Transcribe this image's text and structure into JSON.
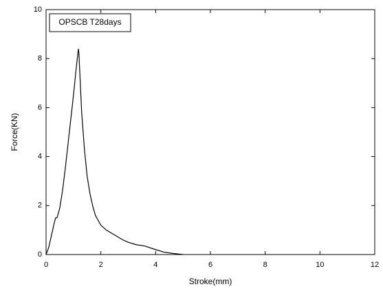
{
  "chart_data": {
    "type": "line",
    "x_label": "Stroke(mm)",
    "y_label": "Force(KN)",
    "xlim": [
      0,
      12
    ],
    "xticks": [
      0,
      2,
      4,
      6,
      8,
      10,
      12
    ],
    "ylim": [
      0,
      10
    ],
    "yticks": [
      0,
      2,
      4,
      6,
      8,
      10
    ],
    "x": [
      0,
      0.1,
      0.2,
      0.3,
      0.35,
      0.4,
      0.5,
      0.6,
      0.7,
      0.8,
      0.9,
      1.0,
      1.1,
      1.18,
      1.2,
      1.25,
      1.3,
      1.4,
      1.5,
      1.6,
      1.7,
      1.8,
      2.0,
      2.2,
      2.5,
      2.8,
      3.0,
      3.3,
      3.6,
      4.0,
      4.3,
      4.6,
      5.0
    ],
    "series": [
      {
        "name": "OPSCB T28days",
        "color": "#000000",
        "values": [
          0,
          0.3,
          0.8,
          1.3,
          1.5,
          1.5,
          1.9,
          2.6,
          3.5,
          4.5,
          5.5,
          6.5,
          7.6,
          8.4,
          8.2,
          7.0,
          5.8,
          4.3,
          3.2,
          2.5,
          2.0,
          1.6,
          1.2,
          1.0,
          0.8,
          0.6,
          0.5,
          0.4,
          0.35,
          0.2,
          0.1,
          0.05,
          0
        ]
      }
    ]
  }
}
